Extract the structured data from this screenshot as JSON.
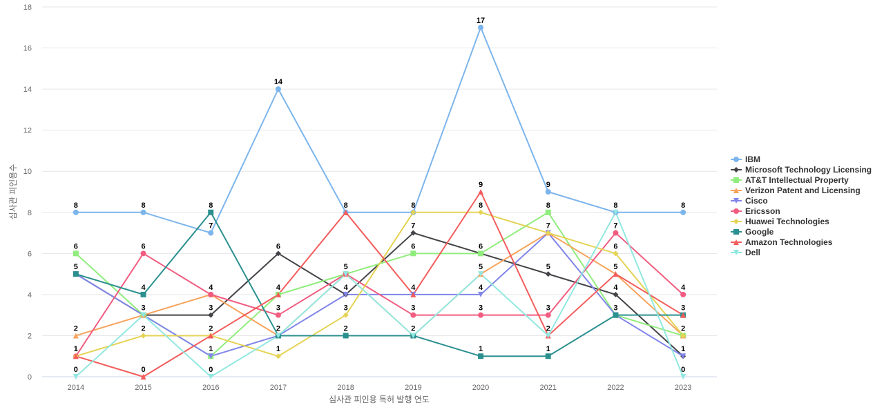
{
  "chart_data": {
    "type": "line",
    "title": "",
    "xlabel": "심사관 피인용 특허 발행 연도",
    "ylabel": "심사관 피인용수",
    "x": [
      "2014",
      "2015",
      "2016",
      "2017",
      "2018",
      "2019",
      "2020",
      "2021",
      "2022",
      "2023"
    ],
    "ylim": [
      0,
      18
    ],
    "yticks": [
      0,
      2,
      4,
      6,
      8,
      10,
      12,
      14,
      16,
      18
    ],
    "grid": true,
    "legend_position": "right",
    "series": [
      {
        "name": "IBM",
        "color": "#7cb5ec",
        "marker": "circle",
        "values": [
          8,
          8,
          7,
          14,
          8,
          8,
          17,
          9,
          8,
          8
        ]
      },
      {
        "name": "Microsoft Technology Licensing",
        "color": "#434348",
        "marker": "diamond",
        "values": [
          5,
          3,
          3,
          6,
          4,
          7,
          6,
          5,
          4,
          1
        ]
      },
      {
        "name": "AT&T Intellectual Property",
        "color": "#90ed7d",
        "marker": "square",
        "values": [
          6,
          3,
          1,
          4,
          5,
          6,
          6,
          8,
          3,
          2
        ]
      },
      {
        "name": "Verizon Patent and Licensing",
        "color": "#f7a35c",
        "marker": "triangle",
        "values": [
          2,
          3,
          4,
          2,
          5,
          2,
          5,
          7,
          5,
          2
        ]
      },
      {
        "name": "Cisco",
        "color": "#8085e9",
        "marker": "triangle-down",
        "values": [
          5,
          3,
          1,
          2,
          4,
          4,
          4,
          7,
          3,
          1
        ]
      },
      {
        "name": "Ericsson",
        "color": "#f15c80",
        "marker": "circle",
        "values": [
          1,
          6,
          4,
          3,
          5,
          3,
          3,
          3,
          7,
          4
        ]
      },
      {
        "name": "Huawei Technologies",
        "color": "#e4d354",
        "marker": "diamond",
        "values": [
          1,
          2,
          2,
          1,
          3,
          8,
          8,
          7,
          6,
          2
        ]
      },
      {
        "name": "Google",
        "color": "#2b908f",
        "marker": "square",
        "values": [
          5,
          4,
          8,
          2,
          2,
          2,
          1,
          1,
          3,
          3
        ]
      },
      {
        "name": "Amazon Technologies",
        "color": "#f45b5b",
        "marker": "triangle",
        "values": [
          1,
          0,
          2,
          4,
          8,
          4,
          9,
          2,
          5,
          3
        ]
      },
      {
        "name": "Dell",
        "color": "#91e8e1",
        "marker": "triangle-down",
        "values": [
          0,
          3,
          0,
          2,
          5,
          2,
          5,
          2,
          8,
          0
        ]
      }
    ],
    "point_labels": [
      {
        "xi": 0,
        "value": 8
      },
      {
        "xi": 0,
        "value": 6
      },
      {
        "xi": 0,
        "value": 5
      },
      {
        "xi": 0,
        "value": 2
      },
      {
        "xi": 0,
        "value": 1
      },
      {
        "xi": 0,
        "value": 0
      },
      {
        "xi": 1,
        "value": 8
      },
      {
        "xi": 1,
        "value": 6
      },
      {
        "xi": 1,
        "value": 4
      },
      {
        "xi": 1,
        "value": 3
      },
      {
        "xi": 1,
        "value": 2
      },
      {
        "xi": 1,
        "value": 0
      },
      {
        "xi": 2,
        "value": 8
      },
      {
        "xi": 2,
        "value": 7
      },
      {
        "xi": 2,
        "value": 4
      },
      {
        "xi": 2,
        "value": 3
      },
      {
        "xi": 2,
        "value": 2
      },
      {
        "xi": 2,
        "value": 1
      },
      {
        "xi": 2,
        "value": 0
      },
      {
        "xi": 3,
        "value": 14
      },
      {
        "xi": 3,
        "value": 6
      },
      {
        "xi": 3,
        "value": 4
      },
      {
        "xi": 3,
        "value": 3
      },
      {
        "xi": 3,
        "value": 2
      },
      {
        "xi": 3,
        "value": 1
      },
      {
        "xi": 4,
        "value": 8
      },
      {
        "xi": 4,
        "value": 5
      },
      {
        "xi": 4,
        "value": 4
      },
      {
        "xi": 4,
        "value": 3
      },
      {
        "xi": 4,
        "value": 2
      },
      {
        "xi": 5,
        "value": 8
      },
      {
        "xi": 5,
        "value": 7
      },
      {
        "xi": 5,
        "value": 6
      },
      {
        "xi": 5,
        "value": 4
      },
      {
        "xi": 5,
        "value": 3
      },
      {
        "xi": 5,
        "value": 2
      },
      {
        "xi": 6,
        "value": 17
      },
      {
        "xi": 6,
        "value": 9
      },
      {
        "xi": 6,
        "value": 8
      },
      {
        "xi": 6,
        "value": 6
      },
      {
        "xi": 6,
        "value": 5
      },
      {
        "xi": 6,
        "value": 4
      },
      {
        "xi": 6,
        "value": 3
      },
      {
        "xi": 6,
        "value": 1
      },
      {
        "xi": 7,
        "value": 9
      },
      {
        "xi": 7,
        "value": 8
      },
      {
        "xi": 7,
        "value": 7
      },
      {
        "xi": 7,
        "value": 5
      },
      {
        "xi": 7,
        "value": 3
      },
      {
        "xi": 7,
        "value": 2
      },
      {
        "xi": 7,
        "value": 1
      },
      {
        "xi": 8,
        "value": 8
      },
      {
        "xi": 8,
        "value": 7
      },
      {
        "xi": 8,
        "value": 6
      },
      {
        "xi": 8,
        "value": 5
      },
      {
        "xi": 8,
        "value": 4
      },
      {
        "xi": 8,
        "value": 3
      },
      {
        "xi": 9,
        "value": 8
      },
      {
        "xi": 9,
        "value": 4
      },
      {
        "xi": 9,
        "value": 3
      },
      {
        "xi": 9,
        "value": 2
      },
      {
        "xi": 9,
        "value": 1
      },
      {
        "xi": 9,
        "value": 0
      }
    ]
  }
}
